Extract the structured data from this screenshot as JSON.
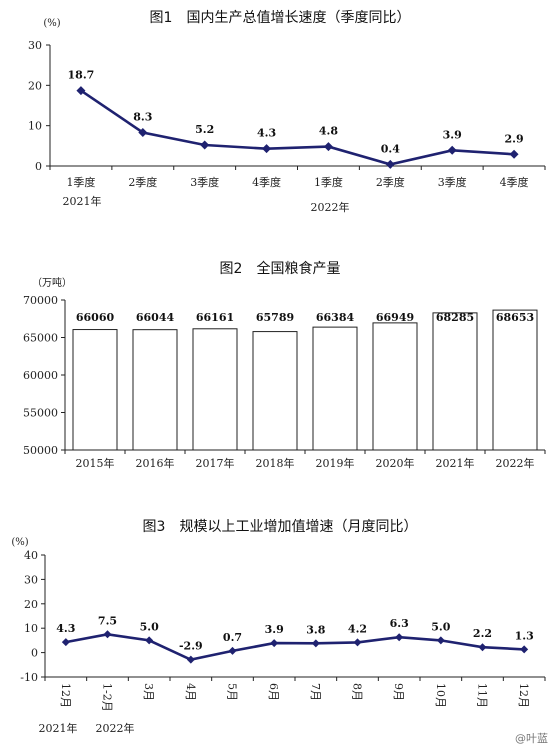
{
  "chart_data": [
    {
      "type": "line",
      "title": "图1　国内生产总值增长速度（季度同比）",
      "unit_label": "(%)",
      "categories": [
        "1季度",
        "2季度",
        "3季度",
        "4季度",
        "1季度",
        "2季度",
        "3季度",
        "4季度"
      ],
      "year_labels": [
        "2021年",
        "2022年"
      ],
      "values": [
        18.7,
        8.3,
        5.2,
        4.3,
        4.8,
        0.4,
        3.9,
        2.9
      ],
      "value_labels": [
        "18.7",
        "8.3",
        "5.2",
        "4.3",
        "4.8",
        "0.4",
        "3.9",
        "2.9"
      ],
      "yticks": [
        "0",
        "10",
        "20",
        "30"
      ],
      "ylim": [
        0,
        30
      ],
      "color": "#1f2270"
    },
    {
      "type": "bar",
      "title": "图2　全国粮食产量",
      "unit_label": "（万吨）",
      "categories": [
        "2015年",
        "2016年",
        "2017年",
        "2018年",
        "2019年",
        "2020年",
        "2021年",
        "2022年"
      ],
      "values": [
        66060,
        66044,
        66161,
        65789,
        66384,
        66949,
        68285,
        68653
      ],
      "value_labels": [
        "66060",
        "66044",
        "66161",
        "65789",
        "66384",
        "66949",
        "68285",
        "68653"
      ],
      "yticks": [
        "50000",
        "55000",
        "60000",
        "65000",
        "70000"
      ],
      "ylim": [
        50000,
        70000
      ]
    },
    {
      "type": "line",
      "title": "图3　规模以上工业增加值增速（月度同比）",
      "unit_label": "(%)",
      "categories": [
        "12月",
        "1-2月",
        "3月",
        "4月",
        "5月",
        "6月",
        "7月",
        "8月",
        "9月",
        "10月",
        "11月",
        "12月"
      ],
      "year_labels": [
        "2021年",
        "2022年"
      ],
      "values": [
        4.3,
        7.5,
        5.0,
        -2.9,
        0.7,
        3.9,
        3.8,
        4.2,
        6.3,
        5.0,
        2.2,
        1.3
      ],
      "value_labels": [
        "4.3",
        "7.5",
        "5.0",
        "-2.9",
        "0.7",
        "3.9",
        "3.8",
        "4.2",
        "6.3",
        "5.0",
        "2.2",
        "1.3"
      ],
      "yticks": [
        "-10",
        "0",
        "10",
        "20",
        "30",
        "40"
      ],
      "ylim": [
        -10,
        40
      ],
      "color": "#1f2270"
    }
  ],
  "watermark": "@叶蓝"
}
